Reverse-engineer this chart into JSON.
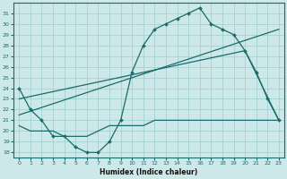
{
  "xlabel": "Humidex (Indice chaleur)",
  "bg_color": "#cce8e8",
  "grid_color": "#9ecece",
  "line_color": "#1a6b6b",
  "xlim": [
    -0.5,
    23.5
  ],
  "ylim": [
    17.5,
    32.0
  ],
  "xticks": [
    0,
    1,
    2,
    3,
    4,
    5,
    6,
    7,
    8,
    9,
    10,
    11,
    12,
    13,
    14,
    15,
    16,
    17,
    18,
    19,
    20,
    21,
    22,
    23
  ],
  "yticks": [
    18,
    19,
    20,
    21,
    22,
    23,
    24,
    25,
    26,
    27,
    28,
    29,
    30,
    31
  ],
  "line1_x": [
    0,
    1,
    2,
    3,
    4,
    5,
    6,
    7,
    8,
    9,
    10,
    11,
    12,
    13,
    14,
    15,
    16,
    17,
    18,
    19,
    20,
    21,
    22,
    23
  ],
  "line1_y": [
    24,
    22,
    21,
    19.5,
    19.5,
    18.5,
    18,
    18,
    19,
    21,
    25.5,
    28,
    29.5,
    30,
    30.5,
    31,
    31.5,
    30,
    29.5,
    29,
    27.5,
    25.5,
    23,
    21
  ],
  "line2_x": [
    0,
    23
  ],
  "line2_y": [
    21.5,
    29.5
  ],
  "line3_x": [
    0,
    20,
    23
  ],
  "line3_y": [
    23,
    27.5,
    21
  ],
  "line4_x": [
    0,
    1,
    2,
    3,
    4,
    5,
    6,
    7,
    8,
    9,
    10,
    11,
    12,
    13,
    14,
    15,
    16,
    17,
    18,
    19,
    20,
    21,
    22,
    23
  ],
  "line4_y": [
    20.5,
    20,
    20,
    20,
    19.5,
    19.5,
    19.5,
    20,
    20.5,
    20.5,
    20.5,
    20.5,
    21,
    21,
    21,
    21,
    21,
    21,
    21,
    21,
    21,
    21,
    21,
    21
  ]
}
